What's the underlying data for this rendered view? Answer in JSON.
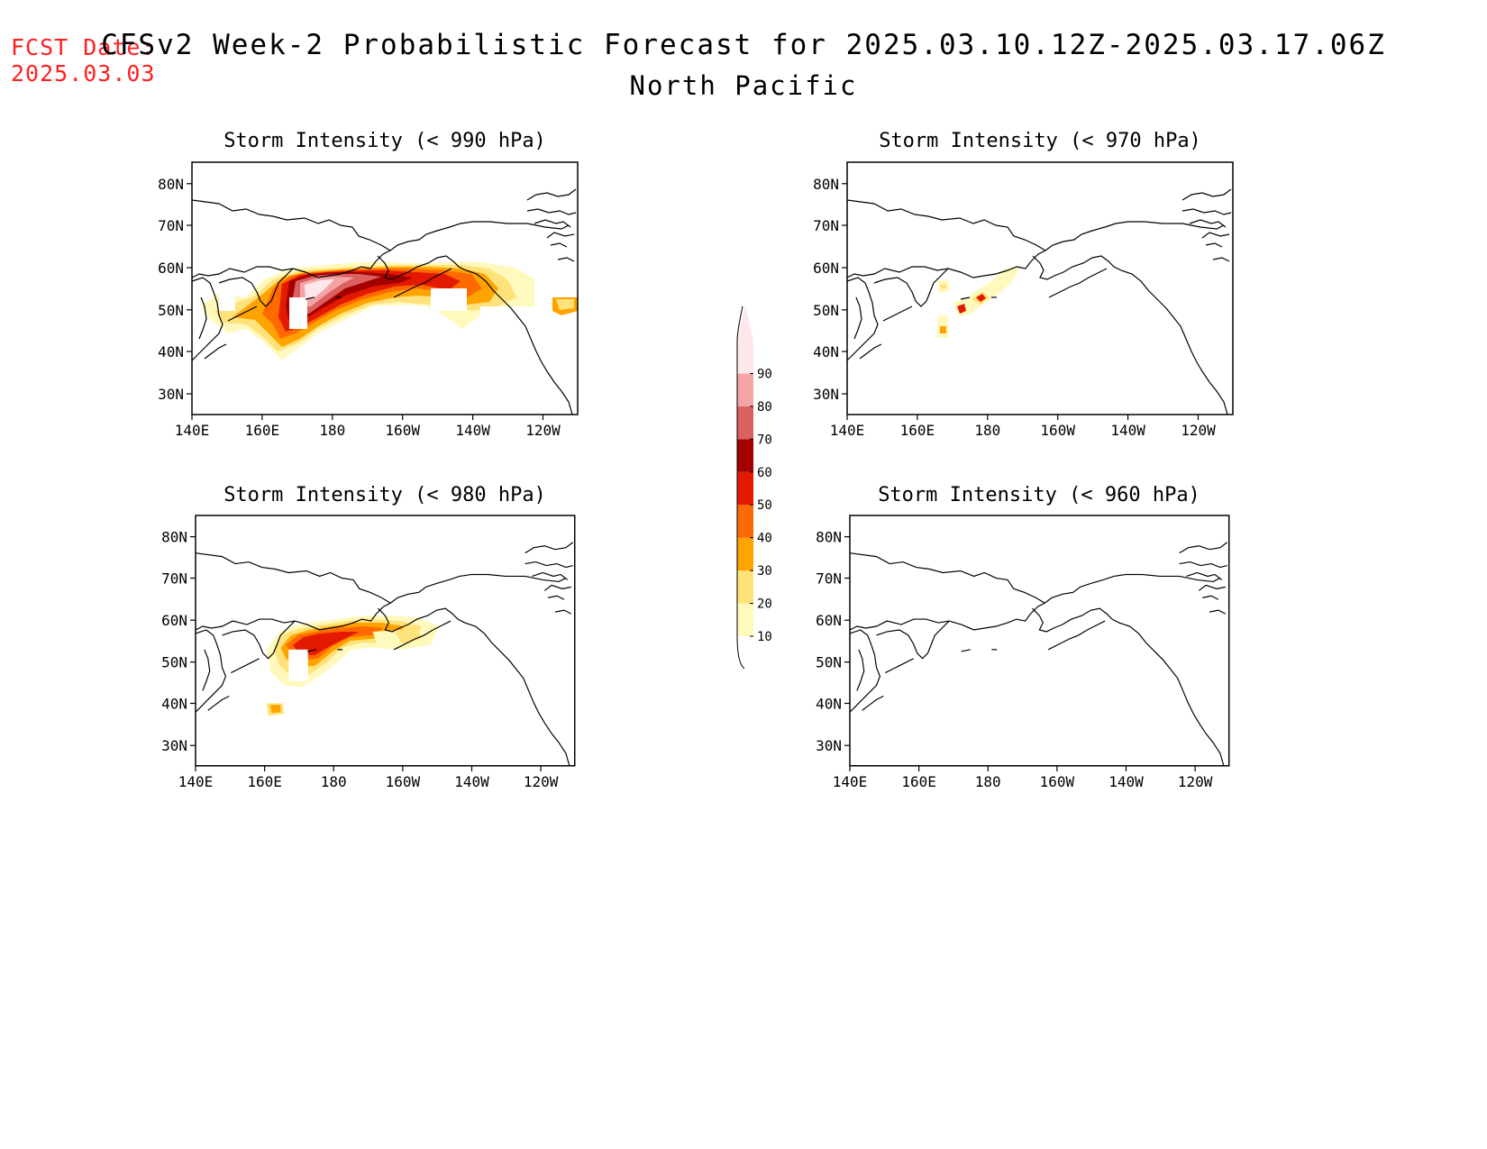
{
  "fcst_date_label": "FCST Date:",
  "fcst_date_value": "2025.03.03",
  "title": "CFSv2 Week-2 Probabilistic Forecast for 2025.03.10.12Z-2025.03.17.06Z",
  "subtitle": "North Pacific",
  "lat_ticks": [
    "80N",
    "70N",
    "60N",
    "50N",
    "40N",
    "30N"
  ],
  "lon_ticks": [
    "140E",
    "160E",
    "180",
    "160W",
    "140W",
    "120W"
  ],
  "panels": [
    {
      "title": "Storm Intensity (< 990 hPa)"
    },
    {
      "title": "Storm Intensity (< 970 hPa)"
    },
    {
      "title": "Storm Intensity (< 980 hPa)"
    },
    {
      "title": "Storm Intensity (< 960 hPa)"
    }
  ],
  "colorbar": {
    "labels": [
      "10",
      "20",
      "30",
      "40",
      "50",
      "60",
      "70",
      "80",
      "90"
    ],
    "colors": [
      "#fff9bd",
      "#ffe27a",
      "#ffa300",
      "#ff6a00",
      "#e31a00",
      "#a50000",
      "#db6060",
      "#f4a4a4",
      "#ffe8ec"
    ]
  }
}
